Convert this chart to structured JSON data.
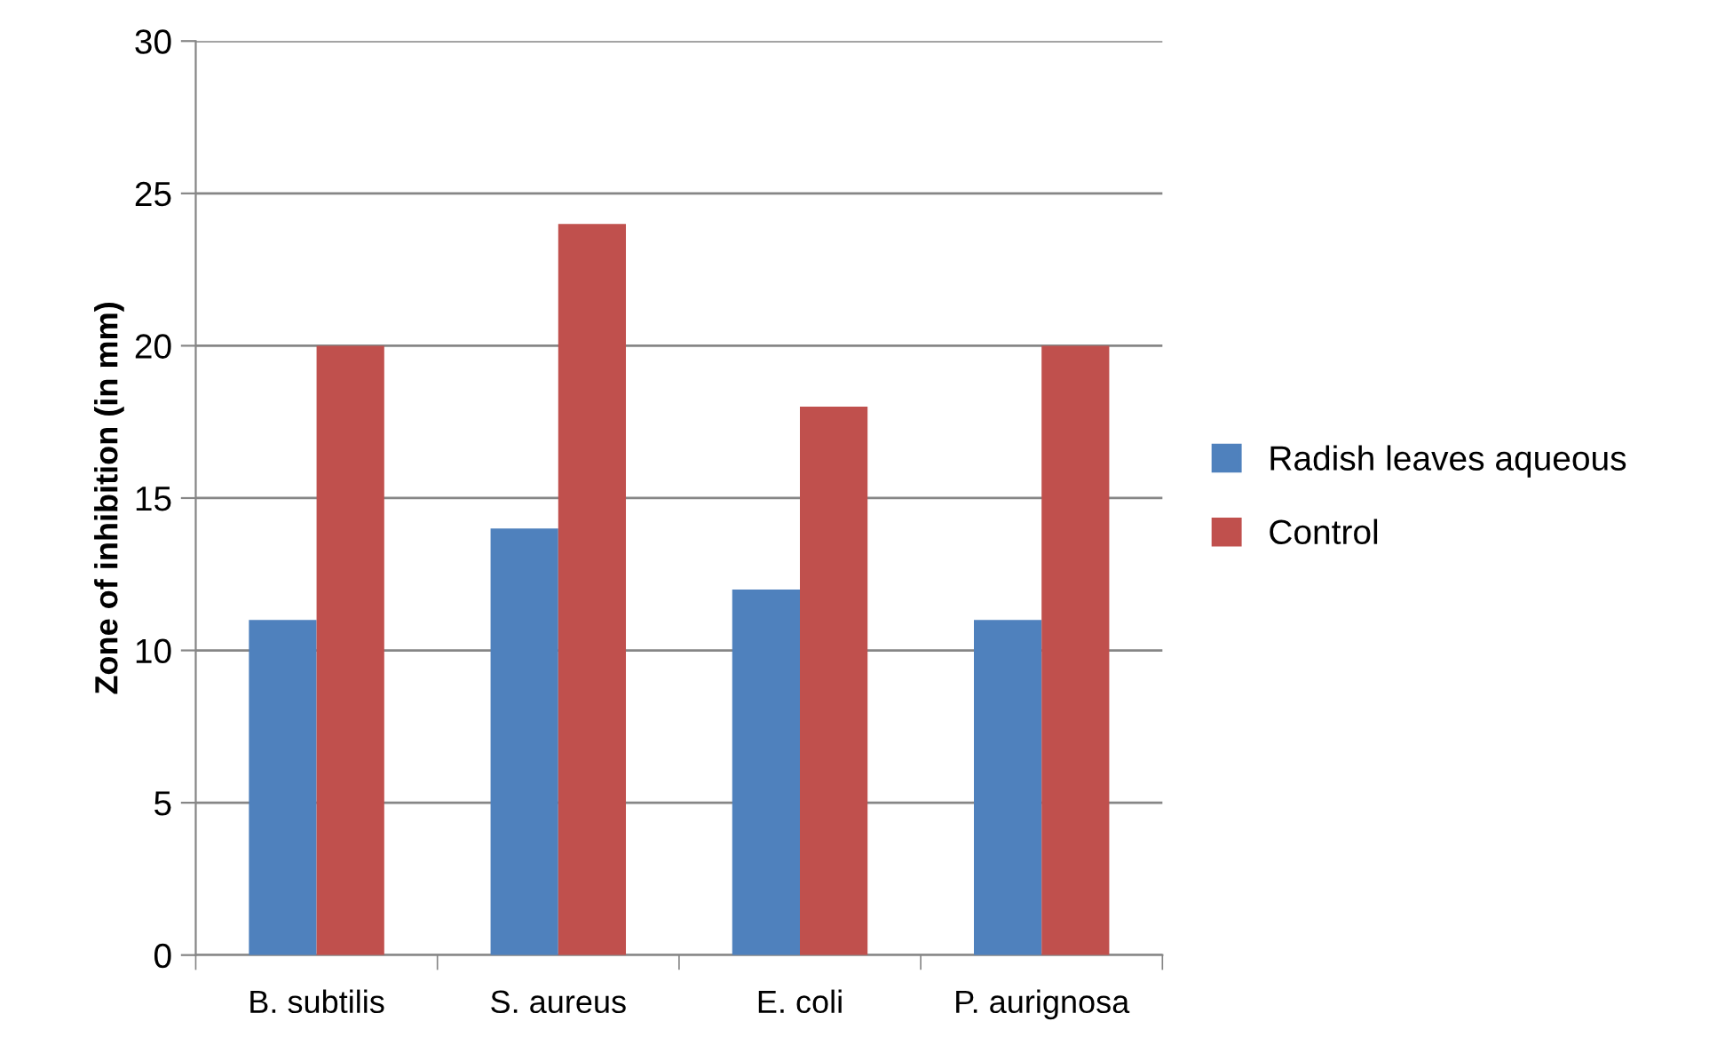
{
  "chart_data": {
    "type": "bar",
    "ylabel": "Zone of inhibition (in mm)",
    "categories": [
      "B. subtilis",
      "S. aureus",
      "E. coli",
      "P. aurignosa"
    ],
    "series": [
      {
        "name": "Radish leaves aqueous",
        "color": "#4f81bd",
        "values": [
          11,
          14,
          12,
          11
        ]
      },
      {
        "name": "Control",
        "color": "#c0504d",
        "values": [
          20,
          24,
          18,
          20
        ]
      }
    ],
    "ylim": [
      0,
      30
    ],
    "yticks": [
      0,
      5,
      10,
      15,
      20,
      25,
      30
    ],
    "grid": "y",
    "legend": "right"
  }
}
